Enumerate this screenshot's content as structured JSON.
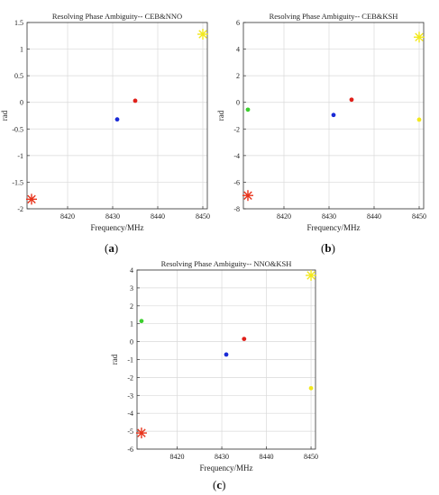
{
  "figure": {
    "captions": [
      {
        "open": "(",
        "letter": "a",
        "close": ")"
      },
      {
        "open": "(",
        "letter": "b",
        "close": ")"
      },
      {
        "open": "(",
        "letter": "c",
        "close": ")"
      }
    ]
  },
  "chart_data": [
    {
      "type": "scatter",
      "title": "Resolving Phase Ambiguity-- CEB&NNO",
      "xlabel": "Frequency/MHz",
      "ylabel": "rad",
      "xlim": [
        8411,
        8451
      ],
      "ylim": [
        -2,
        1.5
      ],
      "xticks": [
        8420,
        8430,
        8440,
        8450
      ],
      "yticks": [
        -2,
        -1.5,
        -1,
        -0.5,
        0,
        0.5,
        1,
        1.5
      ],
      "ytick_labels": [
        "-2",
        "-1.5",
        "-1",
        "-0.5",
        "0",
        "0.5",
        "1",
        "1.5"
      ],
      "grid": true,
      "points": [
        {
          "x": 8412,
          "y": -1.82,
          "color": "#e8341c",
          "marker": "asterisk"
        },
        {
          "x": 8431,
          "y": -0.32,
          "color": "#1a2bd6",
          "marker": "dot"
        },
        {
          "x": 8435,
          "y": 0.03,
          "color": "#e0201a",
          "marker": "dot"
        },
        {
          "x": 8450,
          "y": 1.28,
          "color": "#f2e81c",
          "marker": "asterisk"
        }
      ]
    },
    {
      "type": "scatter",
      "title": "Resolving Phase Ambiguity-- CEB&KSH",
      "xlabel": "Frequency/MHz",
      "ylabel": "rad",
      "xlim": [
        8411,
        8451
      ],
      "ylim": [
        -8,
        6
      ],
      "xticks": [
        8420,
        8430,
        8440,
        8450
      ],
      "yticks": [
        -8,
        -6,
        -4,
        -2,
        0,
        2,
        4,
        6
      ],
      "ytick_labels": [
        "-8",
        "-6",
        "-4",
        "-2",
        "0",
        "2",
        "4",
        "6"
      ],
      "grid": true,
      "points": [
        {
          "x": 8412,
          "y": -7.0,
          "color": "#e8341c",
          "marker": "asterisk"
        },
        {
          "x": 8412,
          "y": -0.55,
          "color": "#3ccf2e",
          "marker": "dot"
        },
        {
          "x": 8431,
          "y": -0.95,
          "color": "#1a2bd6",
          "marker": "dot"
        },
        {
          "x": 8435,
          "y": 0.2,
          "color": "#e0201a",
          "marker": "dot"
        },
        {
          "x": 8450,
          "y": -1.3,
          "color": "#f2e81c",
          "marker": "dot"
        },
        {
          "x": 8450,
          "y": 4.9,
          "color": "#f2e81c",
          "marker": "asterisk"
        }
      ]
    },
    {
      "type": "scatter",
      "title": "Resolving Phase Ambiguity-- NNO&KSH",
      "xlabel": "Frequency/MHz",
      "ylabel": "rad",
      "xlim": [
        8411,
        8451
      ],
      "ylim": [
        -6,
        4
      ],
      "xticks": [
        8420,
        8430,
        8440,
        8450
      ],
      "yticks": [
        -6,
        -5,
        -4,
        -3,
        -2,
        -1,
        0,
        1,
        2,
        3,
        4
      ],
      "ytick_labels": [
        "-6",
        "-5",
        "-4",
        "-3",
        "-2",
        "-1",
        "0",
        "1",
        "2",
        "3",
        "4"
      ],
      "grid": true,
      "points": [
        {
          "x": 8412,
          "y": -5.1,
          "color": "#e8341c",
          "marker": "asterisk"
        },
        {
          "x": 8412,
          "y": 1.15,
          "color": "#3ccf2e",
          "marker": "dot"
        },
        {
          "x": 8431,
          "y": -0.72,
          "color": "#1a2bd6",
          "marker": "dot"
        },
        {
          "x": 8435,
          "y": 0.15,
          "color": "#e0201a",
          "marker": "dot"
        },
        {
          "x": 8450,
          "y": -2.6,
          "color": "#f2e81c",
          "marker": "dot"
        },
        {
          "x": 8450,
          "y": 3.7,
          "color": "#f2e81c",
          "marker": "asterisk"
        }
      ]
    }
  ]
}
